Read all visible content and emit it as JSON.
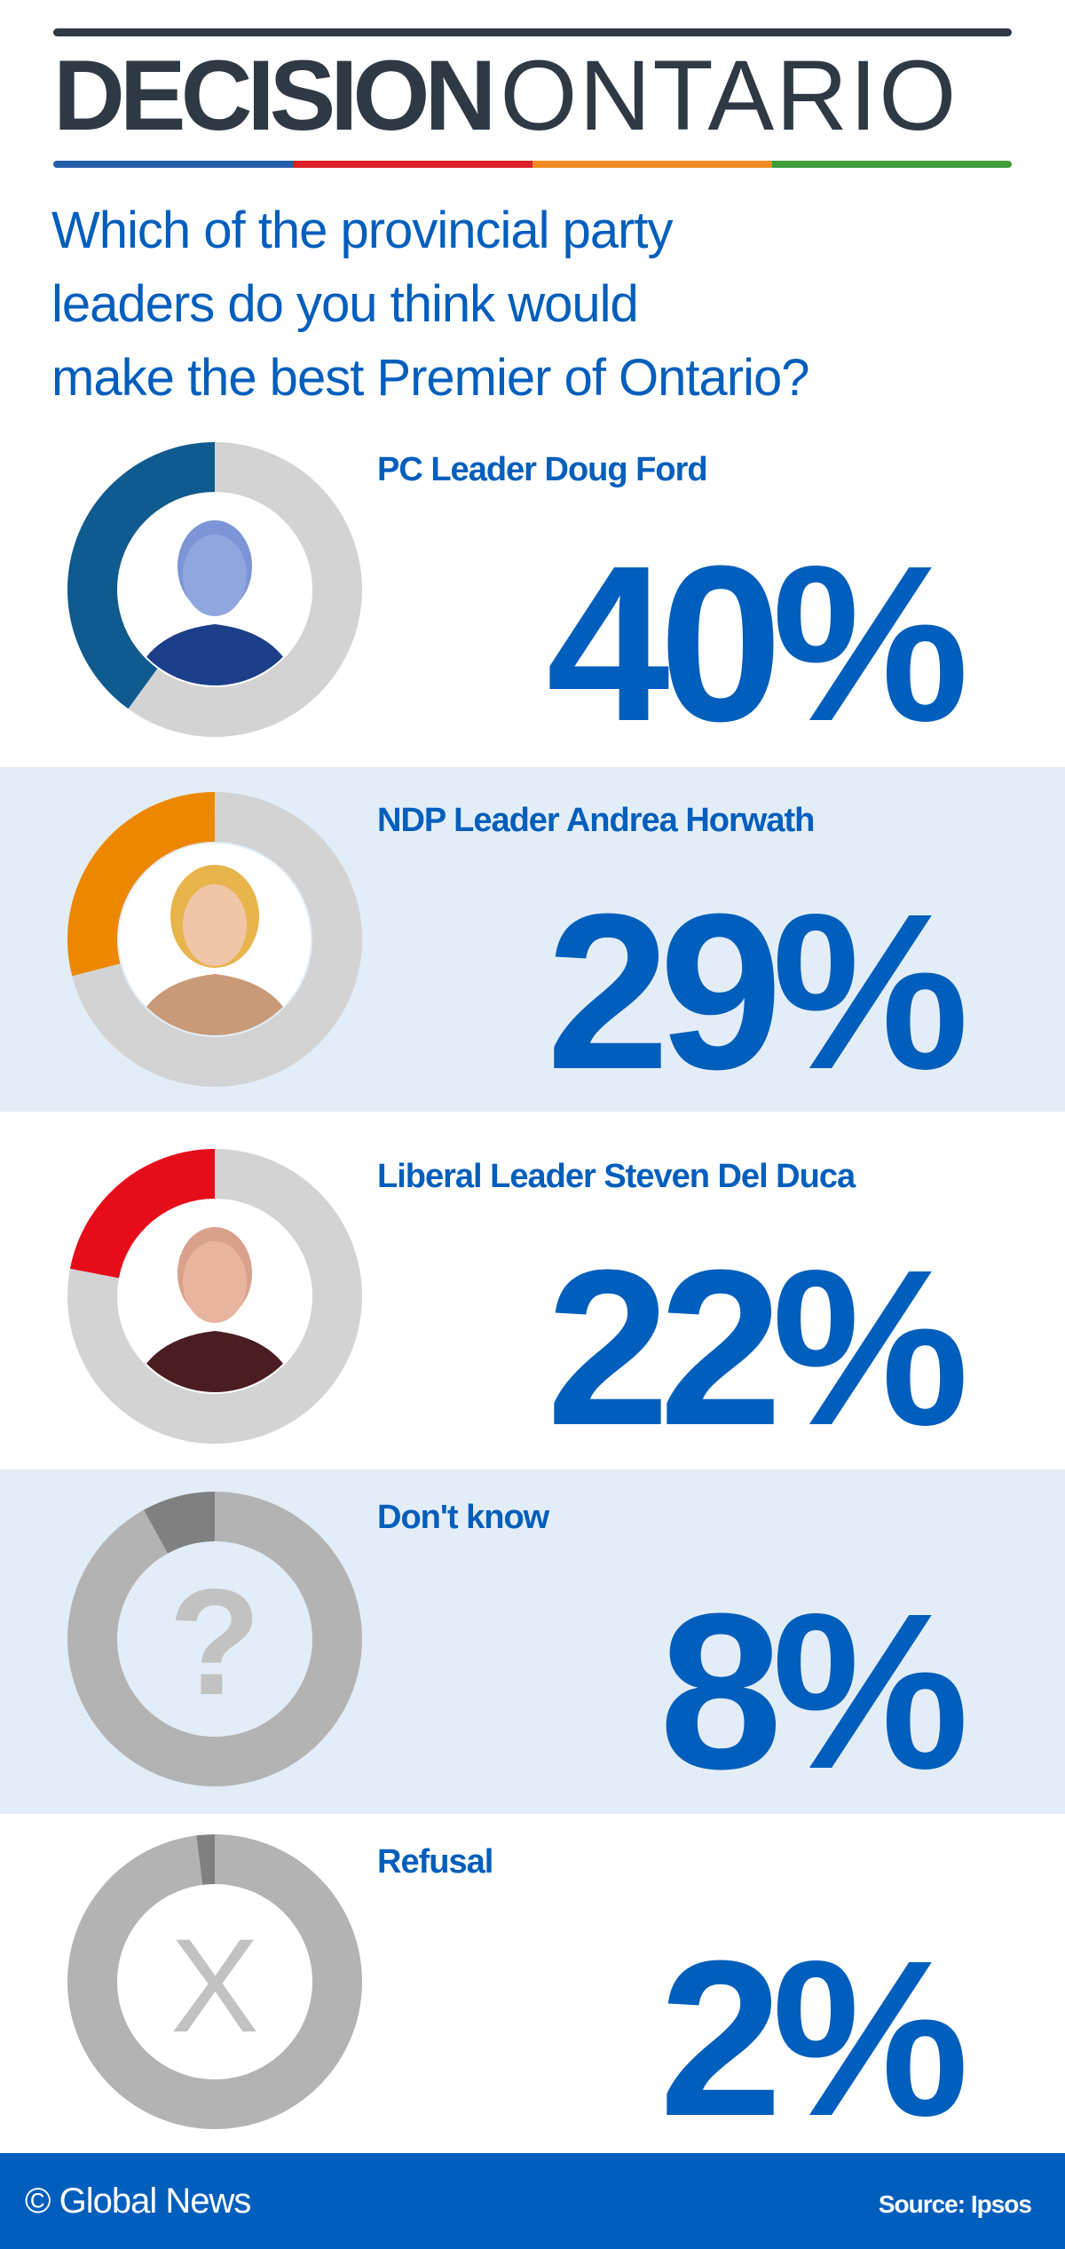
{
  "header": {
    "logo_bold": "DECISION",
    "logo_light": "ONTARIO",
    "stripe_colors": [
      "#2660a8",
      "#da1f26",
      "#f08a24",
      "#3f9c3a"
    ]
  },
  "question": [
    "Which of the provincial party",
    "leaders do you think would",
    "make the best Premier of Ontario?"
  ],
  "chart_data": {
    "type": "pie",
    "title": "Which of the provincial party leaders do you think would make the best Premier of Ontario?",
    "categories": [
      "PC Leader Doug Ford",
      "NDP Leader Andrea Horwath",
      "Liberal Leader Steven Del Duca",
      "Don't know",
      "Refusal"
    ],
    "values": [
      40,
      29,
      22,
      8,
      2
    ],
    "labels": [
      "40%",
      "29%",
      "22%",
      "8%",
      "2%"
    ],
    "colors": [
      "#0f5a8e",
      "#ee8700",
      "#e60d1a",
      "#808080",
      "#808080"
    ],
    "remainder_colors": [
      "#d3d3d3",
      "#d3d3d3",
      "#d3d3d3",
      "#b3b3b3",
      "#b3b3b3"
    ],
    "icons": [
      "photo-doug-ford",
      "photo-andrea-horwath",
      "photo-steven-del-duca",
      "question-mark-icon",
      "x-mark-icon"
    ]
  },
  "footer": {
    "brand": "© Global News",
    "source": "Source: Ipsos"
  }
}
